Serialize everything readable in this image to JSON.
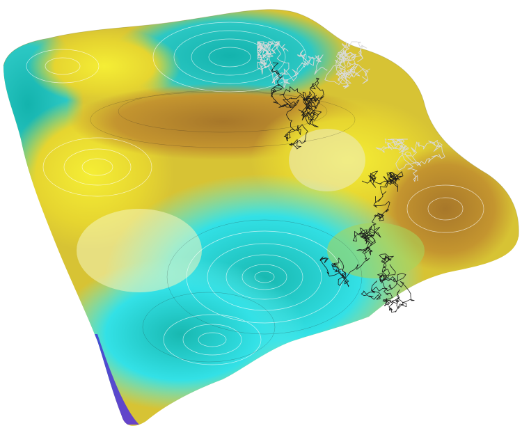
{
  "scene": {
    "subject": "3d-surface-with-random-walk-trajectories",
    "colors": {
      "background": "#ffffff",
      "teal": "#1fb7b4",
      "cyan": "#2fe3ea",
      "yellow": "#e9e12a",
      "ochre": "#b8862b",
      "blue": "#3a4fd0",
      "violet": "#6d44c8",
      "trajectory_dark": "#1a1a1a",
      "trajectory_light": "#d9d9d9",
      "contour": "#ffffff"
    },
    "icons": [
      "surface-mesh",
      "contour-lines",
      "random-walk-path"
    ]
  }
}
